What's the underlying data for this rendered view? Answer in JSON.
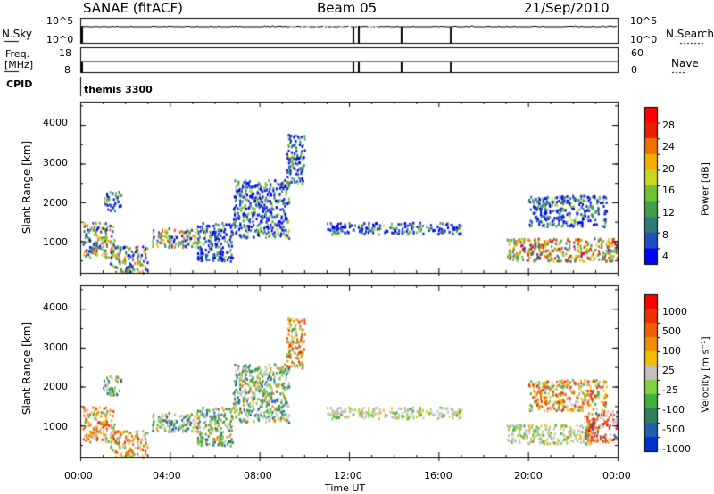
{
  "header": {
    "station": "SANAE (fitACF)",
    "beam": "Beam 05",
    "date": "21/Sep/2010"
  },
  "status_panel_1": {
    "left_label": "N.Sky",
    "left_ticks": [
      "10^5",
      "10^0"
    ],
    "right_ticks": [
      "10^5",
      "10^0"
    ],
    "right_label": "N.Search"
  },
  "status_panel_2": {
    "left_label_top": "Freq.",
    "left_label_bottom": "[MHz]",
    "left_ticks": [
      "18",
      "8"
    ],
    "right_ticks": [
      "60",
      "0"
    ],
    "right_label": "Nave"
  },
  "cpid": {
    "label": "CPID",
    "value": "themis 3300"
  },
  "panel_gaps_hours": [
    12.2,
    14.35,
    16.55
  ],
  "chart_data": [
    {
      "type": "heatmap",
      "name": "power",
      "ylabel": "Slant Range [km]",
      "ylim": [
        180,
        4600
      ],
      "yticks": [
        "1000",
        "2000",
        "3000",
        "4000"
      ],
      "xlim": [
        0,
        24
      ],
      "colorbar": {
        "label": "Power [dB]",
        "ticks": [
          "4",
          "8",
          "12",
          "16",
          "20",
          "24",
          "28"
        ],
        "colors": [
          "#0000ff",
          "#2050c0",
          "#2e7a7a",
          "#3fa050",
          "#70c030",
          "#c8d820",
          "#f0b000",
          "#f07000",
          "#e82000",
          "#ff0000"
        ]
      },
      "scatter_regions": [
        {
          "t0": 0.1,
          "t1": 1.5,
          "r0": 600,
          "r1": 1500,
          "tail": "mid"
        },
        {
          "t0": 1.3,
          "t1": 3.0,
          "r0": 200,
          "r1": 900,
          "tail": "mid"
        },
        {
          "t0": 3.2,
          "t1": 5.2,
          "r0": 850,
          "r1": 1350,
          "tail": "mid"
        },
        {
          "t0": 5.2,
          "t1": 6.8,
          "r0": 500,
          "r1": 1500,
          "tail": "low"
        },
        {
          "t0": 6.8,
          "t1": 9.3,
          "r0": 1100,
          "r1": 2600,
          "tail": "low"
        },
        {
          "t0": 9.2,
          "t1": 10.0,
          "r0": 2500,
          "r1": 3800,
          "tail": "low"
        },
        {
          "t0": 11.0,
          "t1": 17.0,
          "r0": 1200,
          "r1": 1500,
          "tail": "low"
        },
        {
          "t0": 19.0,
          "t1": 24.0,
          "r0": 500,
          "r1": 1100,
          "tail": "high"
        },
        {
          "t0": 20.0,
          "t1": 23.5,
          "r0": 1400,
          "r1": 2200,
          "tail": "low"
        },
        {
          "t0": 1.0,
          "t1": 1.8,
          "r0": 1800,
          "r1": 2300,
          "tail": "low"
        }
      ]
    },
    {
      "type": "heatmap",
      "name": "velocity",
      "ylabel": "Slant Range [km]",
      "ylim": [
        180,
        4600
      ],
      "yticks": [
        "1000",
        "2000",
        "3000",
        "4000"
      ],
      "xlabel": "Time UT",
      "xlim": [
        0,
        24
      ],
      "xticks": [
        "00:00",
        "04:00",
        "08:00",
        "12:00",
        "16:00",
        "20:00",
        "00:00"
      ],
      "colorbar": {
        "label": "Velocity [m s⁻¹]",
        "ticks": [
          "1000",
          "500",
          "100",
          "25",
          "-25",
          "-100",
          "-500",
          "-1000"
        ],
        "colors": [
          "#0030d0",
          "#2060b0",
          "#308060",
          "#40b040",
          "#80d040",
          "#c0c0c0",
          "#f0c000",
          "#f09000",
          "#f06000",
          "#f03000",
          "#ff0000"
        ]
      },
      "scatter_regions": [
        {
          "t0": 0.1,
          "t1": 1.5,
          "r0": 600,
          "r1": 1500,
          "palette": "orange"
        },
        {
          "t0": 1.3,
          "t1": 3.0,
          "r0": 200,
          "r1": 900,
          "palette": "orange"
        },
        {
          "t0": 3.2,
          "t1": 5.2,
          "r0": 850,
          "r1": 1350,
          "palette": "green"
        },
        {
          "t0": 5.2,
          "t1": 6.8,
          "r0": 500,
          "r1": 1500,
          "palette": "green"
        },
        {
          "t0": 6.8,
          "t1": 9.3,
          "r0": 1100,
          "r1": 2600,
          "palette": "green"
        },
        {
          "t0": 9.2,
          "t1": 10.0,
          "r0": 2500,
          "r1": 3800,
          "palette": "orange"
        },
        {
          "t0": 11.0,
          "t1": 17.0,
          "r0": 1200,
          "r1": 1500,
          "palette": "gray"
        },
        {
          "t0": 19.0,
          "t1": 23.0,
          "r0": 550,
          "r1": 1050,
          "palette": "gray"
        },
        {
          "t0": 22.5,
          "t1": 24.0,
          "r0": 600,
          "r1": 1400,
          "palette": "red"
        },
        {
          "t0": 20.0,
          "t1": 23.5,
          "r0": 1400,
          "r1": 2200,
          "palette": "orange"
        },
        {
          "t0": 1.0,
          "t1": 1.8,
          "r0": 1800,
          "r1": 2300,
          "palette": "green"
        }
      ]
    }
  ]
}
